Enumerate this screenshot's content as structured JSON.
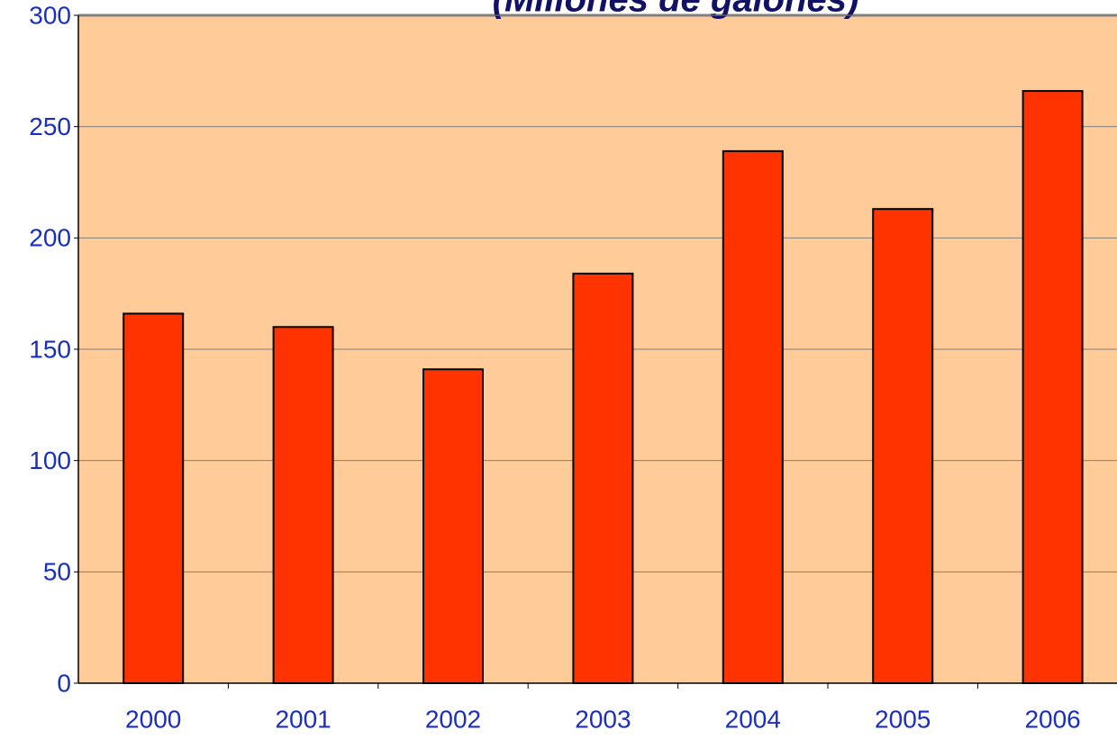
{
  "chart_data": {
    "type": "bar",
    "title": "(Millones de galones)",
    "categories": [
      "2000",
      "2001",
      "2002",
      "2003",
      "2004",
      "2005",
      "2006"
    ],
    "values": [
      166,
      160,
      141,
      184,
      239,
      213,
      266
    ],
    "color": "#ff3300",
    "ylim": [
      0,
      300
    ],
    "yticks": [
      0,
      50,
      100,
      150,
      200,
      250,
      300
    ],
    "grid": true
  }
}
